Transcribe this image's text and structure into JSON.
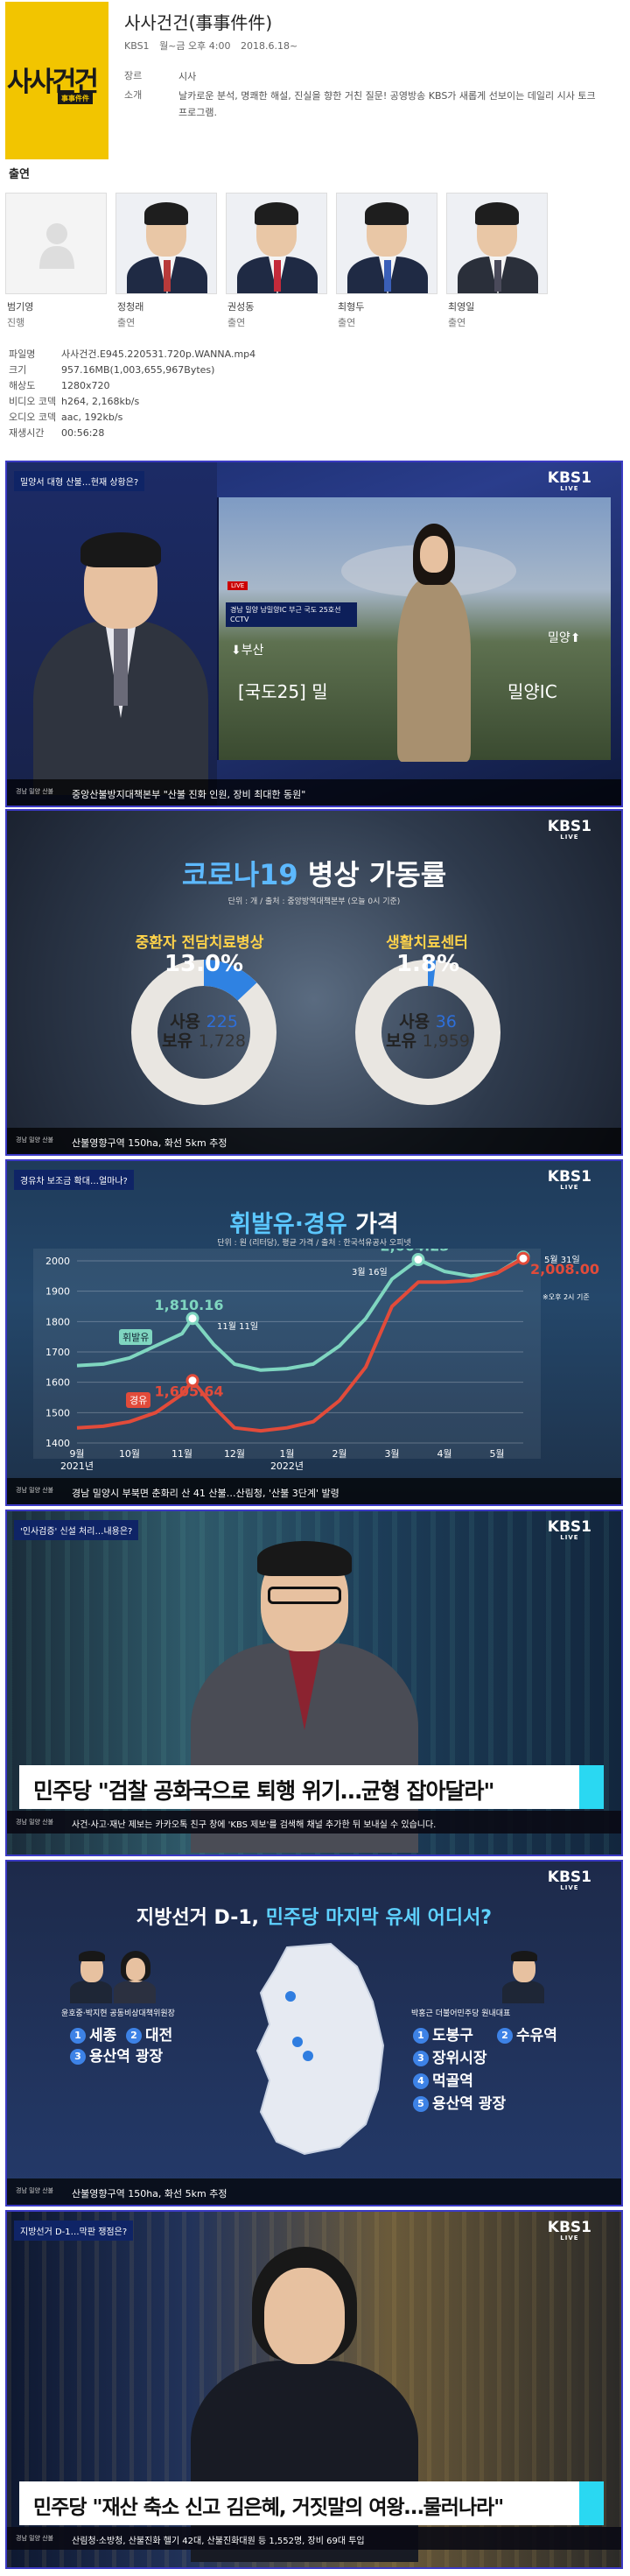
{
  "poster": {
    "title": "사사건건",
    "badge": "事事件件"
  },
  "show": {
    "title": "사사건건(事事件件)",
    "channel": "KBS1",
    "schedule": "월~금 오후 4:00",
    "start": "2018.6.18~",
    "genre_label": "장르",
    "genre": "시사",
    "intro_label": "소개",
    "intro": "날카로운 분석, 명쾌한 해설, 진실을 향한 거친 질문! 공영방송 KBS가 새롭게 선보이는 데일리 시사 토크 프로그램."
  },
  "cast": {
    "heading": "출연",
    "members": [
      {
        "name": "범기영",
        "role": "진행"
      },
      {
        "name": "정청래",
        "role": "출연"
      },
      {
        "name": "권성동",
        "role": "출연"
      },
      {
        "name": "최형두",
        "role": "출연"
      },
      {
        "name": "최영일",
        "role": "출연"
      }
    ]
  },
  "file_info": [
    {
      "k": "파일명",
      "v": "사사건건.E945.220531.720p.WANNA.mp4"
    },
    {
      "k": "크기",
      "v": "957.16MB(1,003,655,967Bytes)"
    },
    {
      "k": "해상도",
      "v": "1280x720"
    },
    {
      "k": "비디오 코덱",
      "v": "h264, 2,168kb/s"
    },
    {
      "k": "오디오 코덱",
      "v": "aac, 192kb/s"
    },
    {
      "k": "재생시간",
      "v": "00:56:28"
    }
  ],
  "logo": {
    "main": "KBS1",
    "sub": "LIVE"
  },
  "frame1": {
    "topic": "밀양서 대형 산불…현재 상황은?",
    "live": "LIVE",
    "cctv_tag": "경남 밀양 남밀양IC 부근 국도 25호선 CCTV",
    "road_text": "[국도25] 밀",
    "road_text2": "밀양IC",
    "arrow_left": "⬇부산",
    "arrow_right": "밀양⬆",
    "ticker": "중앙산불방지대책본부 \"산불 진화 인원, 장비 최대한 동원\"",
    "ticker_tag": "경남 밀양 산불"
  },
  "frame2": {
    "title_hl": "코로나19",
    "title": "병상 가동률",
    "sub": "단위 : 개 / 출처 : 중앙방역대책본부 (오늘 0시 기준)",
    "ticker": "산불영향구역 150ha, 화선 5km 추정",
    "ticker_tag": "경남 밀양 산불",
    "donuts": [
      {
        "label": "중환자 전담치료병상",
        "pct": "13.0%",
        "pct_value": 13.0,
        "use_label": "사용",
        "use": "225",
        "keep_label": "보유",
        "keep": "1,728"
      },
      {
        "label": "생활치료센터",
        "pct": "1.8%",
        "pct_value": 1.8,
        "use_label": "사용",
        "use": "36",
        "keep_label": "보유",
        "keep": "1,959"
      }
    ]
  },
  "frame3": {
    "topic": "경유차 보조금 확대…얼마나?",
    "title_hl": "휘발유·경유",
    "title": "가격",
    "sub": "단위 : 원 (리터당), 평균 가격 / 출처 : 한국석유공사 오피넷",
    "ticker": "경남 밀양시 부북면 춘화리 산 41 산불…산림청, '산불 3단계' 발령",
    "ticker_tag": "경남 밀양 산불",
    "annot_nov": "11월 11일",
    "annot_mar": "3월 16일",
    "annot_may": "5월 31일",
    "annot_time": "※오후 2시 기준",
    "label_gas": "휘발유",
    "label_diesel": "경유"
  },
  "chart_data": {
    "type": "line",
    "x": [
      "9월",
      "10월",
      "11월",
      "12월",
      "1월",
      "2월",
      "3월",
      "4월",
      "5월"
    ],
    "x_year_labels": [
      "2021년",
      "2022년"
    ],
    "ylim": [
      1400,
      2000
    ],
    "yticks": [
      1400,
      1500,
      1600,
      1700,
      1800,
      1900,
      2000
    ],
    "grid": true,
    "series": [
      {
        "name": "휘발유",
        "color": "#7fd6c0",
        "points": [
          [
            0,
            1655
          ],
          [
            0.5,
            1660
          ],
          [
            1,
            1680
          ],
          [
            1.5,
            1720
          ],
          [
            2,
            1760
          ],
          [
            2.2,
            1810.16
          ],
          [
            2.6,
            1725
          ],
          [
            3,
            1660
          ],
          [
            3.5,
            1640
          ],
          [
            4,
            1645
          ],
          [
            4.5,
            1660
          ],
          [
            5,
            1720
          ],
          [
            5.5,
            1810
          ],
          [
            6,
            1940
          ],
          [
            6.5,
            2004.23
          ],
          [
            7,
            1965
          ],
          [
            7.5,
            1950
          ],
          [
            8,
            1960
          ],
          [
            8.5,
            2012.33
          ]
        ],
        "labeled": [
          {
            "at": 2.2,
            "value": "1,810.16"
          },
          {
            "at": 6.5,
            "value": "2,004.23"
          },
          {
            "at": 8.5,
            "value": "2,012.33"
          }
        ]
      },
      {
        "name": "경유",
        "color": "#e24b3a",
        "points": [
          [
            0,
            1450
          ],
          [
            0.5,
            1455
          ],
          [
            1,
            1470
          ],
          [
            1.5,
            1500
          ],
          [
            2,
            1560
          ],
          [
            2.2,
            1605.64
          ],
          [
            2.6,
            1520
          ],
          [
            3,
            1450
          ],
          [
            3.5,
            1440
          ],
          [
            4,
            1450
          ],
          [
            4.5,
            1470
          ],
          [
            5,
            1540
          ],
          [
            5.5,
            1650
          ],
          [
            6,
            1850
          ],
          [
            6.5,
            1930
          ],
          [
            7,
            1930
          ],
          [
            7.5,
            1935
          ],
          [
            8,
            1960
          ],
          [
            8.5,
            2008.0
          ]
        ],
        "labeled": [
          {
            "at": 2.2,
            "value": "1,605.64"
          },
          {
            "at": 8.5,
            "value": "2,008.00"
          }
        ]
      }
    ]
  },
  "frame4": {
    "topic": "'인사검증' 신설 처리…내용은?",
    "caption": "민주당 \"검찰 공화국으로 퇴행 위기…균형 잡아달라\"",
    "ticker": "사건·사고·재난 제보는 카카오톡 친구 창에 'KBS 제보'를 검색해 채널 추가한 뒤 보내실 수 있습니다.",
    "ticker_tag": "경남 밀양 산불"
  },
  "frame5": {
    "title": "지방선거 D-1,",
    "title_hl": "민주당 마지막 유세 어디서?",
    "left_label": "윤호중·박지현 공동비상대책위원장",
    "right_label": "박홍근 더불어민주당 원내대표",
    "left_places": [
      "세종",
      "대전",
      "용산역 광장"
    ],
    "right_places": [
      "도봉구",
      "수유역",
      "장위시장",
      "먹골역",
      "용산역 광장"
    ],
    "ticker": "산불영향구역 150ha, 화선 5km 추정",
    "ticker_tag": "경남 밀양 산불"
  },
  "frame6": {
    "topic": "지방선거 D-1…막판 쟁점은?",
    "caption": "민주당 \"재산 축소 신고 김은혜, 거짓말의 여왕…물러나라\"",
    "ticker": "산림청·소방청, 산불진화 헬기 42대, 산불진화대원 등 1,552명, 장비 69대 투입",
    "ticker_tag": "경남 밀양 산불"
  }
}
